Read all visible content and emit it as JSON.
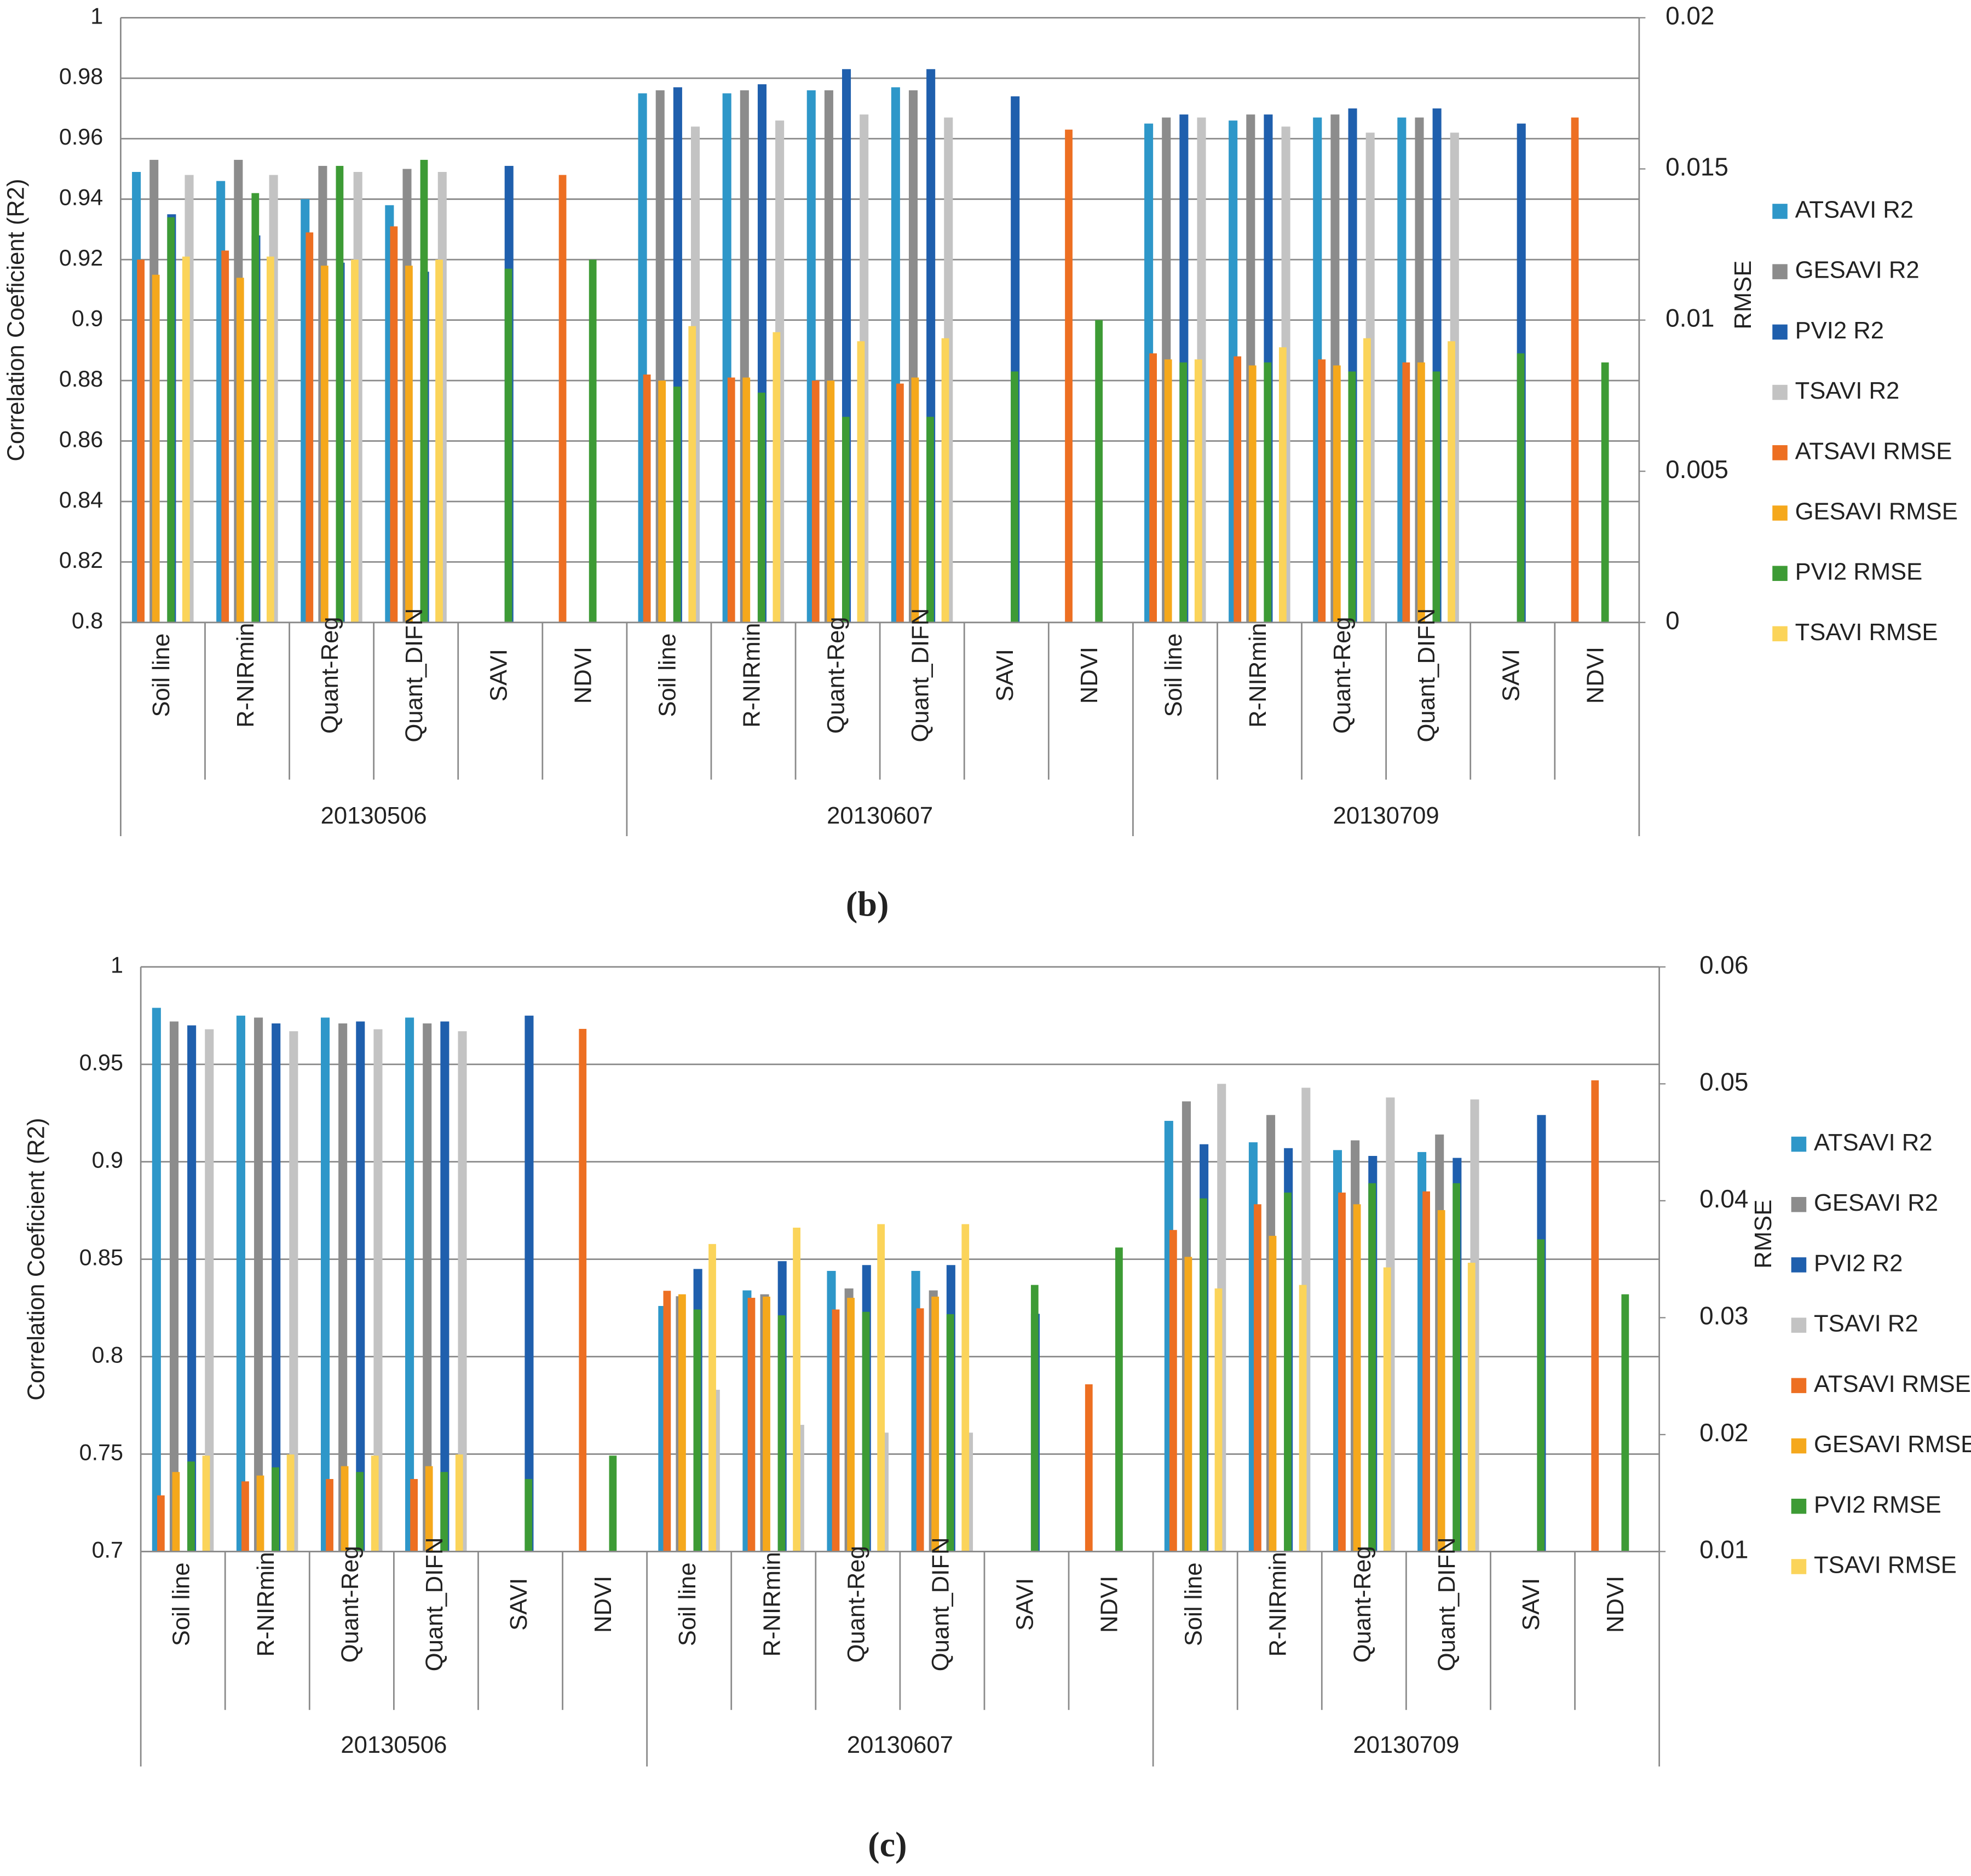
{
  "chart_data": [
    {
      "type": "bar",
      "title": "(b)",
      "y_label": "Correlation Coeficient (R2)",
      "y2_label": "RMSE",
      "categories": [
        "Soil line",
        "R-NIRmin",
        "Quant-Reg",
        "Quant_DIFN",
        "SAVI",
        "NDVI",
        "Soil line",
        "R-NIRmin",
        "Quant-Reg",
        "Quant_DIFN",
        "SAVI",
        "NDVI",
        "Soil line",
        "R-NIRmin",
        "Quant-Reg",
        "Quant_DIFN",
        "SAVI",
        "NDVI"
      ],
      "category_groups": [
        "20130506",
        "20130607",
        "20130709"
      ],
      "ylim": [
        0.8,
        1
      ],
      "yticks": [
        0.8,
        0.82,
        0.84,
        0.86,
        0.88,
        0.9,
        0.92,
        0.94,
        0.96,
        0.98,
        1
      ],
      "y2lim": [
        0,
        0.02
      ],
      "y2ticks": [
        0,
        0.005,
        0.01,
        0.015,
        0.02
      ],
      "grid": true,
      "legend": "right",
      "series": [
        {
          "name": "ATSAVI R2",
          "color": "#2e97c9",
          "values": [
            0.949,
            0.946,
            0.94,
            0.938,
            null,
            null,
            0.975,
            0.975,
            0.976,
            0.977,
            null,
            null,
            0.965,
            0.966,
            0.967,
            0.967,
            null,
            null
          ]
        },
        {
          "name": "GESAVI R2",
          "color": "#8c8c8c",
          "values": [
            0.953,
            0.953,
            0.951,
            0.95,
            null,
            null,
            0.976,
            0.976,
            0.976,
            0.976,
            null,
            null,
            0.967,
            0.968,
            0.968,
            0.967,
            null,
            null
          ]
        },
        {
          "name": "PVI2 R2",
          "color": "#1f5fad",
          "values": [
            0.935,
            0.928,
            0.919,
            0.916,
            0.951,
            null,
            0.977,
            0.978,
            0.983,
            0.983,
            0.974,
            null,
            0.968,
            0.968,
            0.97,
            0.97,
            0.965,
            null
          ]
        },
        {
          "name": "TSAVI R2",
          "color": "#c3c3c3",
          "values": [
            0.948,
            0.948,
            0.949,
            0.949,
            null,
            null,
            0.964,
            0.966,
            0.968,
            0.967,
            null,
            null,
            0.967,
            0.964,
            0.962,
            0.962,
            null,
            null
          ]
        },
        {
          "name": "ATSAVI RMSE",
          "color": "#ed6f22",
          "axis": "y2",
          "values": [
            0.012,
            0.0123,
            0.0129,
            0.0131,
            null,
            0.0148,
            0.0082,
            0.0081,
            0.008,
            0.0079,
            null,
            0.0163,
            0.0089,
            0.0088,
            0.0087,
            0.0086,
            null,
            0.0167
          ]
        },
        {
          "name": "GESAVI RMSE",
          "color": "#f5a81c",
          "axis": "y2",
          "values": [
            0.0115,
            0.0114,
            0.0118,
            0.0118,
            null,
            null,
            0.008,
            0.0081,
            0.008,
            0.0081,
            null,
            null,
            0.0087,
            0.0085,
            0.0085,
            0.0086,
            null,
            null
          ]
        },
        {
          "name": "PVI2 RMSE",
          "color": "#3d9b35",
          "axis": "y2",
          "values": [
            0.0134,
            0.0142,
            0.0151,
            0.0153,
            0.0117,
            0.012,
            0.0078,
            0.0076,
            0.0068,
            0.0068,
            0.0083,
            0.01,
            0.0086,
            0.0086,
            0.0083,
            0.0083,
            0.0089,
            0.0086
          ]
        },
        {
          "name": "TSAVI RMSE",
          "color": "#fbd45a",
          "axis": "y2",
          "values": [
            0.0121,
            0.0121,
            0.012,
            0.012,
            null,
            null,
            0.0098,
            0.0096,
            0.0093,
            0.0094,
            null,
            null,
            0.0087,
            0.0091,
            0.0094,
            0.0093,
            null,
            null
          ]
        }
      ]
    },
    {
      "type": "bar",
      "title": "(c)",
      "y_label": "Correlation Coeficient (R2)",
      "y2_label": "RMSE",
      "categories": [
        "Soil line",
        "R-NIRmin",
        "Quant-Reg",
        "Quant_DIFN",
        "SAVI",
        "NDVI",
        "Soil line",
        "R-NIRmin",
        "Quant-Reg",
        "Quant_DIFN",
        "SAVI",
        "NDVI",
        "Soil line",
        "R-NIRmin",
        "Quant-Reg",
        "Quant_DIFN",
        "SAVI",
        "NDVI"
      ],
      "category_groups": [
        "20130506",
        "20130607",
        "20130709"
      ],
      "ylim": [
        0.7,
        1
      ],
      "yticks": [
        0.7,
        0.75,
        0.8,
        0.85,
        0.9,
        0.95,
        1
      ],
      "y2lim": [
        0.01,
        0.06
      ],
      "y2ticks": [
        0.01,
        0.02,
        0.03,
        0.04,
        0.05,
        0.06
      ],
      "grid": true,
      "legend": "right",
      "series": [
        {
          "name": "ATSAVI R2",
          "color": "#2e97c9",
          "values": [
            0.979,
            0.975,
            0.974,
            0.974,
            null,
            null,
            0.826,
            0.834,
            0.844,
            0.844,
            null,
            null,
            0.921,
            0.91,
            0.906,
            0.905,
            null,
            null
          ]
        },
        {
          "name": "GESAVI R2",
          "color": "#8c8c8c",
          "values": [
            0.972,
            0.974,
            0.971,
            0.971,
            null,
            null,
            0.831,
            0.832,
            0.835,
            0.834,
            null,
            null,
            0.931,
            0.924,
            0.911,
            0.914,
            null,
            null
          ]
        },
        {
          "name": "PVI2 R2",
          "color": "#1f5fad",
          "values": [
            0.97,
            0.971,
            0.972,
            0.972,
            0.975,
            null,
            0.845,
            0.849,
            0.847,
            0.847,
            0.822,
            null,
            0.909,
            0.907,
            0.903,
            0.902,
            0.924,
            null
          ]
        },
        {
          "name": "TSAVI R2",
          "color": "#c3c3c3",
          "values": [
            0.968,
            0.967,
            0.968,
            0.967,
            null,
            null,
            0.783,
            0.765,
            0.761,
            0.761,
            null,
            null,
            0.94,
            0.938,
            0.933,
            0.932,
            null,
            null
          ]
        },
        {
          "name": "ATSAVI RMSE",
          "color": "#ed6f22",
          "axis": "y2",
          "values": [
            0.0148,
            0.016,
            0.0162,
            0.0162,
            null,
            0.0547,
            0.0323,
            0.0317,
            0.0307,
            0.0308,
            null,
            0.0243,
            0.0375,
            0.0397,
            0.0407,
            0.0408,
            null,
            0.0503
          ]
        },
        {
          "name": "GESAVI RMSE",
          "color": "#f5a81c",
          "axis": "y2",
          "values": [
            0.0168,
            0.0165,
            0.0173,
            0.0173,
            null,
            null,
            0.032,
            0.0318,
            0.0317,
            0.0318,
            null,
            null,
            0.0352,
            0.037,
            0.0397,
            0.0392,
            null,
            null
          ]
        },
        {
          "name": "PVI2 RMSE",
          "color": "#3d9b35",
          "axis": "y2",
          "values": [
            0.0177,
            0.0172,
            0.0168,
            0.0168,
            0.0162,
            0.0182,
            0.0307,
            0.0302,
            0.0305,
            0.0303,
            0.0328,
            0.036,
            0.0402,
            0.0407,
            0.0415,
            0.0415,
            0.0367,
            0.032
          ]
        },
        {
          "name": "TSAVI RMSE",
          "color": "#fbd45a",
          "axis": "y2",
          "values": [
            0.0182,
            0.0183,
            0.0182,
            0.0183,
            null,
            null,
            0.0363,
            0.0377,
            0.038,
            0.038,
            null,
            null,
            0.0325,
            0.0328,
            0.0343,
            0.0347,
            null,
            null
          ]
        }
      ]
    }
  ]
}
